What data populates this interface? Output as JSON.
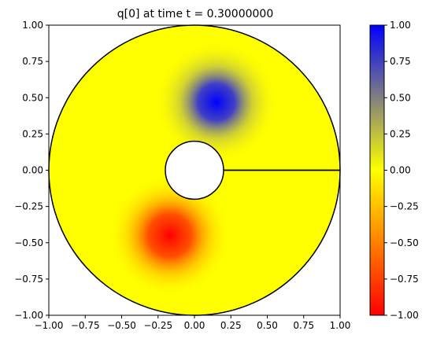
{
  "chart_data": {
    "type": "heatmap",
    "title": "q[0] at time t =     0.30000000",
    "xlabel": "",
    "ylabel": "",
    "xlim": [
      -1.0,
      1.0
    ],
    "ylim": [
      -1.0,
      1.0
    ],
    "x_ticks": [
      "−1.00",
      "−0.75",
      "−0.50",
      "−0.25",
      "0.00",
      "0.25",
      "0.50",
      "0.75",
      "1.00"
    ],
    "x_tick_values": [
      -1.0,
      -0.75,
      -0.5,
      -0.25,
      0.0,
      0.25,
      0.5,
      0.75,
      1.0
    ],
    "y_ticks": [
      "1.00",
      "0.75",
      "0.50",
      "0.25",
      "0.00",
      "−0.25",
      "−0.50",
      "−0.75",
      "−1.00"
    ],
    "y_tick_values": [
      1.0,
      0.75,
      0.5,
      0.25,
      0.0,
      -0.25,
      -0.5,
      -0.75,
      -1.0
    ],
    "domain": {
      "type": "annulus",
      "outer_radius": 1.0,
      "inner_radius": 0.2,
      "cut_line": {
        "from": [
          0.2,
          0.0
        ],
        "to": [
          1.0,
          0.0
        ]
      }
    },
    "features": [
      {
        "name": "positive",
        "center": [
          0.15,
          0.47
        ],
        "peak_value": 1.0
      },
      {
        "name": "negative",
        "center": [
          -0.17,
          -0.45
        ],
        "peak_value": -1.0
      }
    ],
    "colorbar": {
      "vmin": -1.0,
      "vmax": 1.0,
      "ticks": [
        "1.00",
        "0.75",
        "0.50",
        "0.25",
        "0.00",
        "−0.25",
        "−0.50",
        "−0.75",
        "−1.00"
      ],
      "tick_values": [
        1.0,
        0.75,
        0.5,
        0.25,
        0.0,
        -0.25,
        -0.5,
        -0.75,
        -1.0
      ],
      "colors": {
        "min": "#ff0000",
        "low": "#ff8000",
        "mid": "#ffff00",
        "high": "#808080",
        "max": "#0000ff"
      }
    },
    "background_color": "#ffff00",
    "grid": false
  }
}
